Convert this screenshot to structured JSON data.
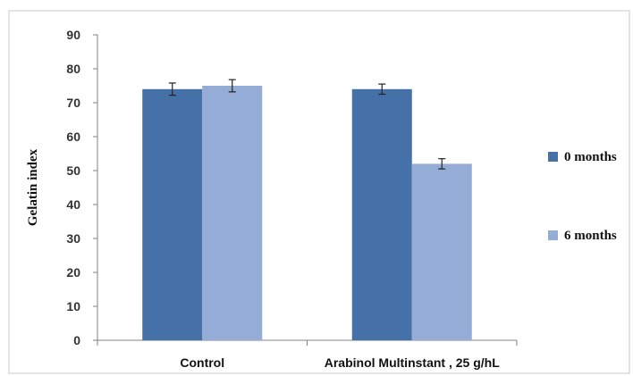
{
  "chart_data": {
    "type": "bar",
    "title": "",
    "xlabel": "",
    "ylabel": "Gelatin index",
    "ylim": [
      0,
      90
    ],
    "yticks": [
      0,
      10,
      20,
      30,
      40,
      50,
      60,
      70,
      80,
      90
    ],
    "grid": false,
    "legend_position": "right",
    "categories": [
      "Control",
      "Arabinol Multinstant , 25 g/hL"
    ],
    "series": [
      {
        "name": "0 months",
        "color": "#4670a8",
        "values": [
          74,
          74
        ],
        "errors": [
          1.8,
          1.5
        ]
      },
      {
        "name": "6 months",
        "color": "#94acd6",
        "values": [
          75,
          52
        ],
        "errors": [
          1.8,
          1.5
        ]
      }
    ]
  }
}
